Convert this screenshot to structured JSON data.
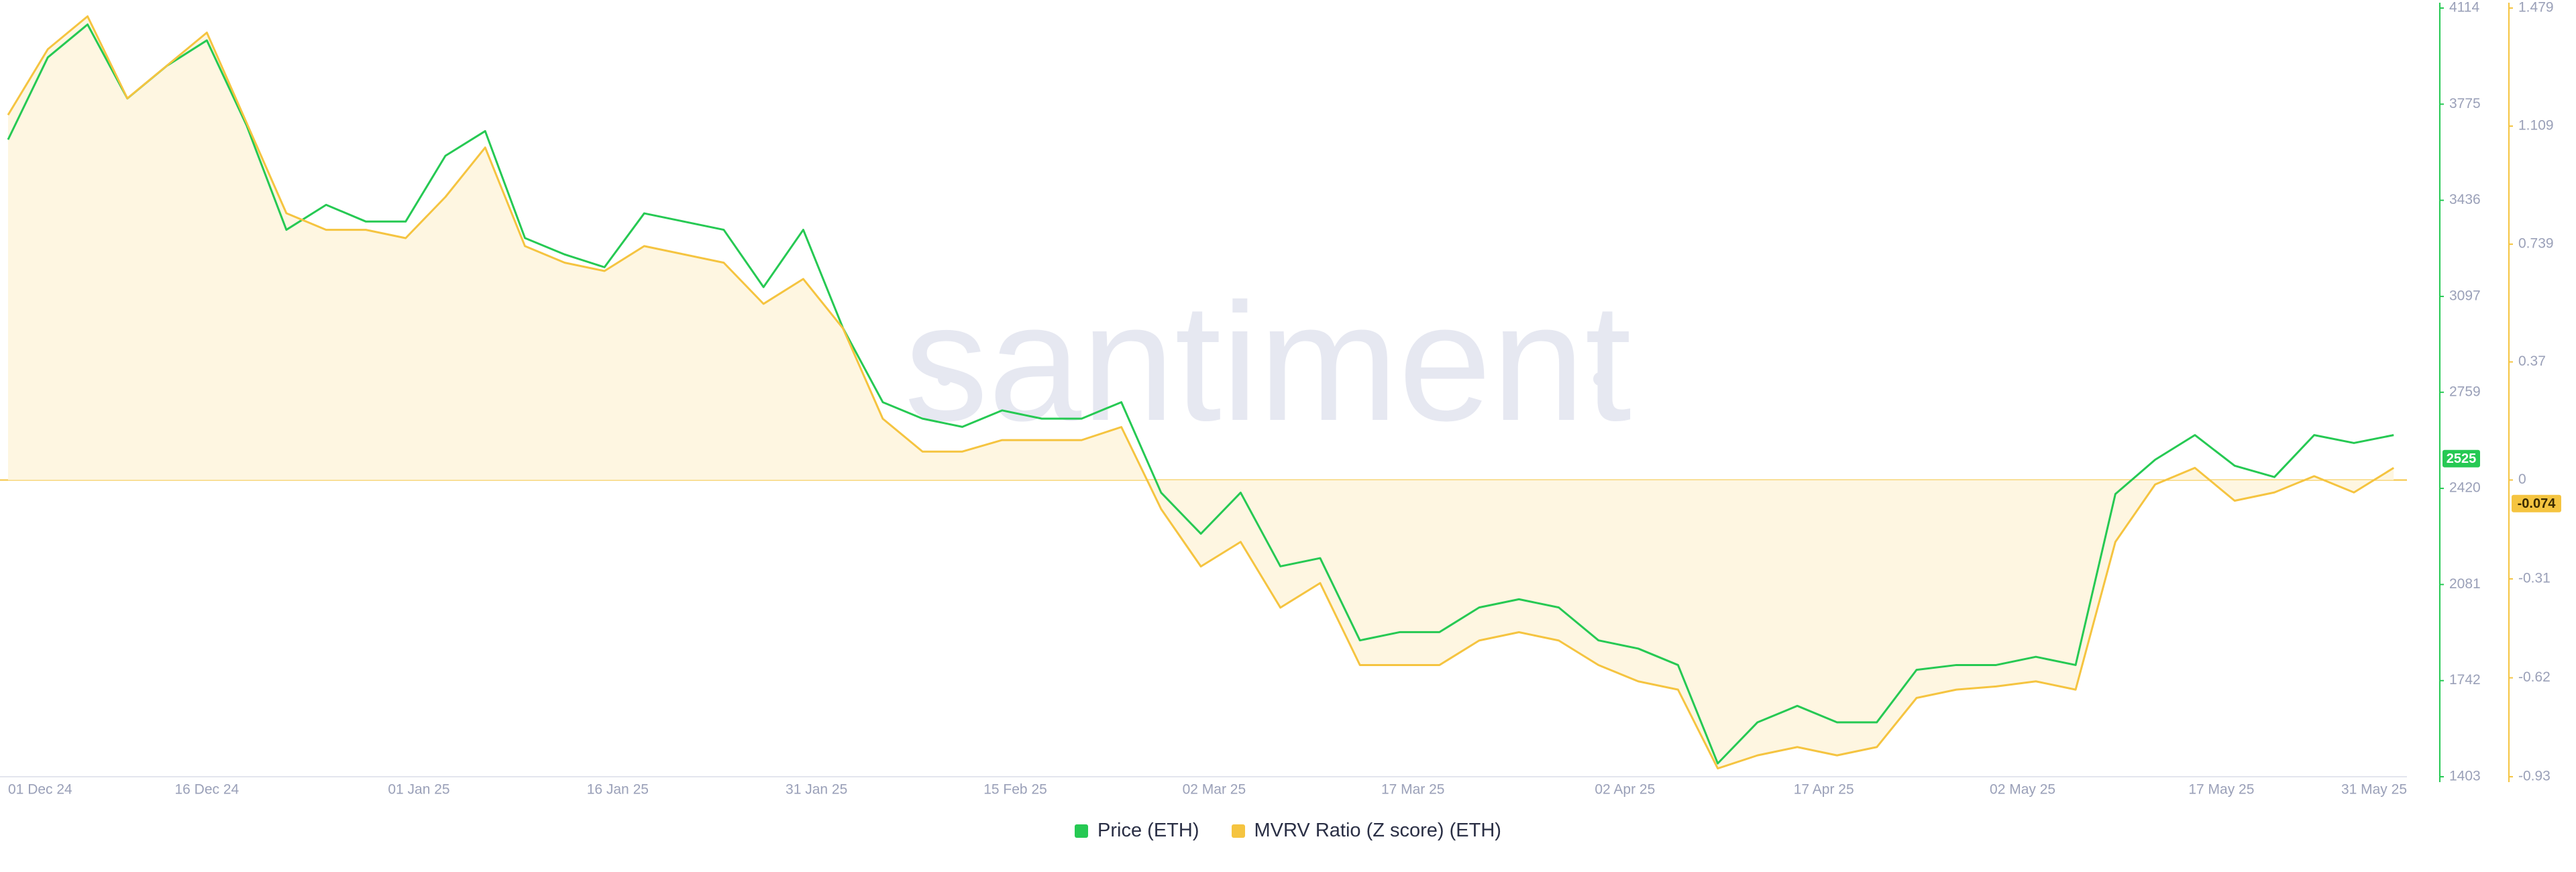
{
  "chart_data": {
    "type": "line",
    "watermark": "santiment",
    "x": [
      "01 Dec 24",
      "04 Dec 24",
      "07 Dec 24",
      "10 Dec 24",
      "13 Dec 24",
      "16 Dec 24",
      "19 Dec 24",
      "22 Dec 24",
      "25 Dec 24",
      "28 Dec 24",
      "31 Dec 24",
      "03 Jan 25",
      "06 Jan 25",
      "09 Jan 25",
      "12 Jan 25",
      "15 Jan 25",
      "18 Jan 25",
      "21 Jan 25",
      "24 Jan 25",
      "27 Jan 25",
      "30 Jan 25",
      "02 Feb 25",
      "05 Feb 25",
      "08 Feb 25",
      "11 Feb 25",
      "14 Feb 25",
      "17 Feb 25",
      "20 Feb 25",
      "23 Feb 25",
      "26 Feb 25",
      "01 Mar 25",
      "04 Mar 25",
      "07 Mar 25",
      "10 Mar 25",
      "13 Mar 25",
      "16 Mar 25",
      "19 Mar 25",
      "22 Mar 25",
      "25 Mar 25",
      "28 Mar 25",
      "31 Mar 25",
      "03 Apr 25",
      "06 Apr 25",
      "09 Apr 25",
      "12 Apr 25",
      "15 Apr 25",
      "18 Apr 25",
      "21 Apr 25",
      "24 Apr 25",
      "27 Apr 25",
      "30 Apr 25",
      "03 May 25",
      "06 May 25",
      "09 May 25",
      "12 May 25",
      "15 May 25",
      "18 May 25",
      "21 May 25",
      "24 May 25",
      "27 May 25",
      "30 May 25"
    ],
    "xlim": [
      "01 Dec 24",
      "31 May 25"
    ],
    "xticks": [
      "01 Dec 24",
      "16 Dec 24",
      "01 Jan 25",
      "16 Jan 25",
      "31 Jan 25",
      "15 Feb 25",
      "02 Mar 25",
      "17 Mar 25",
      "02 Apr 25",
      "17 Apr 25",
      "02 May 25",
      "17 May 25",
      "31 May 25"
    ],
    "ylim": [
      1403,
      4114
    ],
    "yticks": [
      1403,
      1742,
      2081,
      2420,
      2759,
      3097,
      3436,
      3775,
      4114
    ],
    "y2lim": [
      -0.93,
      1.479
    ],
    "y2ticks": [
      -0.93,
      -0.62,
      -0.31,
      0,
      0.37,
      0.739,
      1.109,
      1.479
    ],
    "series": [
      {
        "name": "Price (ETH)",
        "color": "#26c953",
        "current": 2525,
        "values": [
          3650,
          3940,
          4056,
          3795,
          3911,
          4000,
          3700,
          3332,
          3420,
          3361,
          3361,
          3593,
          3680,
          3303,
          3245,
          3200,
          3390,
          3361,
          3332,
          3130,
          3332,
          2985,
          2724,
          2666,
          2637,
          2695,
          2666,
          2666,
          2724,
          2405,
          2260,
          2405,
          2145,
          2174,
          1884,
          1913,
          1913,
          2000,
          2029,
          2000,
          1884,
          1855,
          1797,
          1450,
          1595,
          1653,
          1595,
          1595,
          1780,
          1797,
          1797,
          1826,
          1797,
          2400,
          2521,
          2608,
          2500,
          2460,
          2608,
          2580,
          2608
        ]
      },
      {
        "name": "MVRV Ratio (Z score) (ETH)",
        "color": "#f5c440",
        "axis": "y2",
        "current": -0.074,
        "values": [
          1.144,
          1.35,
          1.453,
          1.196,
          1.299,
          1.402,
          1.119,
          0.836,
          0.784,
          0.784,
          0.758,
          0.887,
          1.042,
          0.733,
          0.681,
          0.655,
          0.733,
          0.707,
          0.681,
          0.552,
          0.63,
          0.475,
          0.192,
          0.089,
          0.089,
          0.125,
          0.125,
          0.125,
          0.166,
          -0.091,
          -0.271,
          -0.194,
          -0.4,
          -0.323,
          -0.58,
          -0.58,
          -0.58,
          -0.503,
          -0.477,
          -0.503,
          -0.58,
          -0.631,
          -0.657,
          -0.904,
          -0.863,
          -0.837,
          -0.863,
          -0.837,
          -0.683,
          -0.657,
          -0.647,
          -0.631,
          -0.657,
          -0.194,
          -0.014,
          0.038,
          -0.065,
          -0.039,
          0.012,
          -0.039,
          0.038
        ]
      }
    ]
  }
}
